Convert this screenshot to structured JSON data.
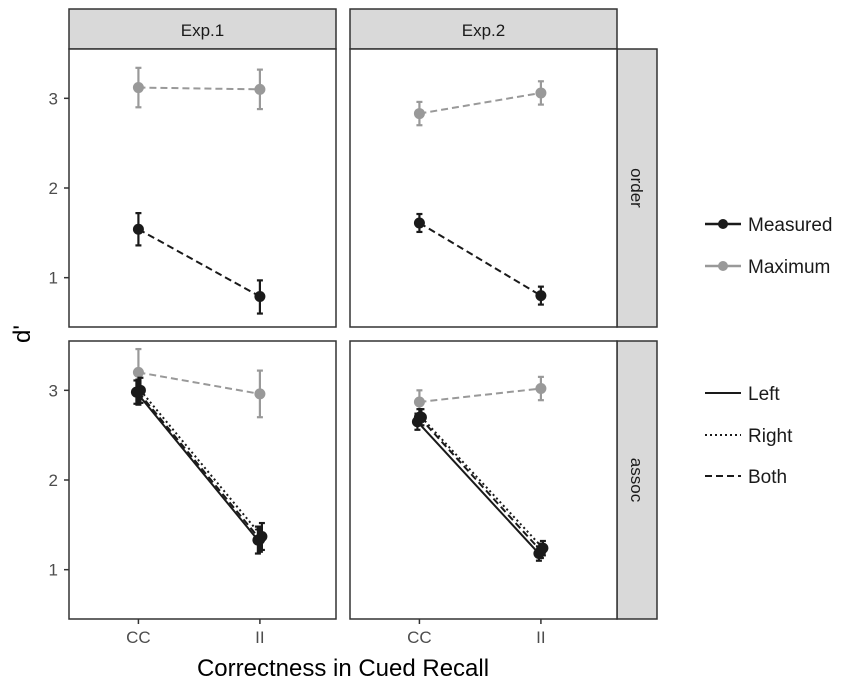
{
  "chart_data": {
    "type": "line",
    "xlabel": "Correctness in Cued Recall",
    "ylabel": "d'",
    "categories": [
      "CC",
      "II"
    ],
    "ylim": [
      0.45,
      3.55
    ],
    "yticks": [
      1,
      2,
      3
    ],
    "grid": false,
    "legend_position": "right",
    "facet_columns": [
      "Exp.1",
      "Exp.2"
    ],
    "facet_rows": [
      "order",
      "assoc"
    ],
    "legend_type": {
      "entries": [
        {
          "label": "Measured",
          "color": "#1a1a1a"
        },
        {
          "label": "Maximum",
          "color": "#999999"
        }
      ]
    },
    "legend_side": {
      "entries": [
        {
          "label": "Left",
          "dash": "solid"
        },
        {
          "label": "Right",
          "dash": "dotted"
        },
        {
          "label": "Both",
          "dash": "dashed"
        }
      ]
    },
    "panels": [
      {
        "column": "Exp.1",
        "row": "order",
        "series": [
          {
            "type": "Maximum",
            "side": "Both",
            "values": [
              3.12,
              3.1
            ],
            "err": [
              [
                2.9,
                3.34
              ],
              [
                2.88,
                3.32
              ]
            ]
          },
          {
            "type": "Measured",
            "side": "Both",
            "values": [
              1.54,
              0.79
            ],
            "err": [
              [
                1.36,
                1.72
              ],
              [
                0.6,
                0.97
              ]
            ]
          }
        ]
      },
      {
        "column": "Exp.2",
        "row": "order",
        "series": [
          {
            "type": "Maximum",
            "side": "Both",
            "values": [
              2.83,
              3.06
            ],
            "err": [
              [
                2.7,
                2.96
              ],
              [
                2.93,
                3.19
              ]
            ]
          },
          {
            "type": "Measured",
            "side": "Both",
            "values": [
              1.61,
              0.8
            ],
            "err": [
              [
                1.51,
                1.71
              ],
              [
                0.7,
                0.9
              ]
            ]
          }
        ]
      },
      {
        "column": "Exp.1",
        "row": "assoc",
        "series": [
          {
            "type": "Maximum",
            "side": "Both",
            "values": [
              3.2,
              2.96
            ],
            "err": [
              [
                2.94,
                3.46
              ],
              [
                2.7,
                3.22
              ]
            ]
          },
          {
            "type": "Measured",
            "side": "Left",
            "values": [
              2.98,
              1.33
            ],
            "err": [
              [
                2.85,
                3.11
              ],
              [
                1.18,
                1.48
              ]
            ]
          },
          {
            "type": "Measured",
            "side": "Right",
            "values": [
              3.0,
              1.37
            ],
            "err": [
              [
                2.86,
                3.14
              ],
              [
                1.22,
                1.52
              ]
            ]
          },
          {
            "type": "Measured",
            "side": "Both",
            "values": [
              2.98,
              1.34
            ],
            "err": [
              [
                2.84,
                3.12
              ],
              [
                1.2,
                1.48
              ]
            ]
          }
        ]
      },
      {
        "column": "Exp.2",
        "row": "assoc",
        "series": [
          {
            "type": "Maximum",
            "side": "Both",
            "values": [
              2.87,
              3.02
            ],
            "err": [
              [
                2.74,
                3.0
              ],
              [
                2.89,
                3.15
              ]
            ]
          },
          {
            "type": "Measured",
            "side": "Left",
            "values": [
              2.65,
              1.18
            ],
            "err": [
              [
                2.56,
                2.74
              ],
              [
                1.1,
                1.26
              ]
            ]
          },
          {
            "type": "Measured",
            "side": "Right",
            "values": [
              2.7,
              1.24
            ],
            "err": [
              [
                2.61,
                2.79
              ],
              [
                1.16,
                1.32
              ]
            ]
          },
          {
            "type": "Measured",
            "side": "Both",
            "values": [
              2.7,
              1.21
            ],
            "err": [
              [
                2.61,
                2.79
              ],
              [
                1.13,
                1.29
              ]
            ]
          }
        ]
      }
    ]
  }
}
